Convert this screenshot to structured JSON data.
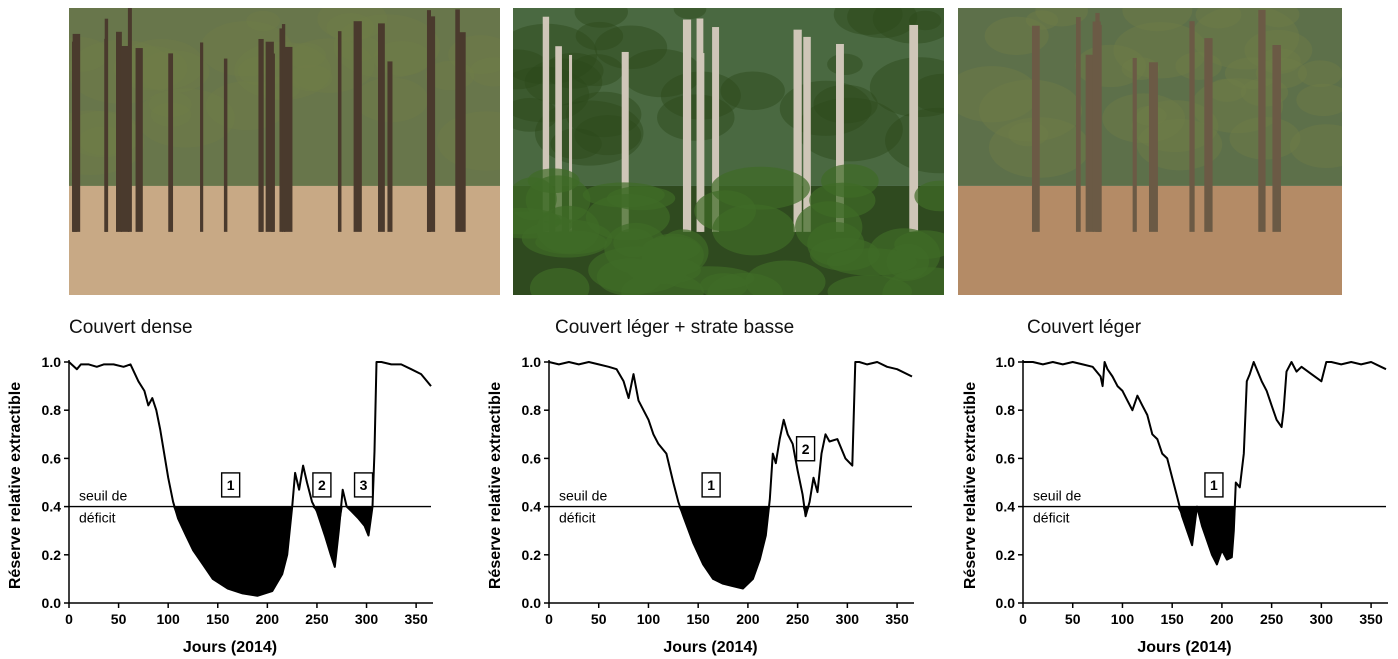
{
  "photos": [
    {
      "panel": "Couvert dense",
      "palette": {
        "sky": "#9fb4a0",
        "canopy": "#5e6b3c",
        "ground": "#c8a985",
        "trunk": "#4a3a2d"
      }
    },
    {
      "panel": "Couvert léger + strate basse",
      "palette": {
        "sky": "#8fb8de",
        "canopy": "#3e5a26",
        "ground": "#2f4a1f",
        "trunk": "#cfc6b8"
      }
    },
    {
      "panel": "Couvert léger",
      "palette": {
        "sky": "#b6d0ea",
        "canopy": "#4d5f2e",
        "ground": "#b48b66",
        "trunk": "#6b5a45"
      }
    }
  ],
  "chart_data": [
    {
      "type": "line",
      "title": "Couvert dense",
      "xlabel": "Jours (2014)",
      "ylabel": "Réserve relative extractible",
      "xlim": [
        0,
        365
      ],
      "ylim": [
        0,
        1.0
      ],
      "x_ticks": [
        "0",
        "50",
        "100",
        "150",
        "200",
        "250",
        "300",
        "350"
      ],
      "y_ticks": [
        "0.0",
        "0.2",
        "0.4",
        "0.6",
        "0.8",
        "1.0"
      ],
      "threshold": {
        "value": 0.4,
        "label_line1": "seuil de",
        "label_line2": "déficit"
      },
      "annotations": [
        {
          "label": "1",
          "x": 163,
          "y": 0.49
        },
        {
          "label": "2",
          "x": 255,
          "y": 0.49
        },
        {
          "label": "3",
          "x": 297,
          "y": 0.49
        }
      ],
      "series": [
        {
          "x": [
            0,
            8,
            12,
            20,
            28,
            35,
            45,
            55,
            62,
            70,
            76,
            80,
            84,
            88,
            92,
            96,
            100,
            105,
            110,
            118,
            125,
            135,
            145,
            160,
            175,
            190,
            205,
            215,
            220,
            225,
            228,
            232,
            236,
            240,
            245,
            250,
            258,
            264,
            268,
            272,
            276,
            280,
            285,
            292,
            298,
            302,
            306,
            308,
            310,
            315,
            325,
            335,
            345,
            355,
            365
          ],
          "y": [
            1.0,
            0.97,
            0.99,
            0.99,
            0.98,
            0.99,
            0.99,
            0.98,
            0.99,
            0.92,
            0.88,
            0.82,
            0.85,
            0.8,
            0.72,
            0.62,
            0.52,
            0.42,
            0.35,
            0.28,
            0.22,
            0.16,
            0.1,
            0.06,
            0.04,
            0.03,
            0.05,
            0.12,
            0.2,
            0.4,
            0.54,
            0.47,
            0.57,
            0.5,
            0.42,
            0.38,
            0.28,
            0.2,
            0.15,
            0.3,
            0.47,
            0.4,
            0.38,
            0.35,
            0.32,
            0.28,
            0.4,
            0.63,
            1.0,
            1.0,
            0.99,
            0.99,
            0.97,
            0.95,
            0.9
          ]
        }
      ]
    },
    {
      "type": "line",
      "title": "Couvert léger + strate basse",
      "xlabel": "Jours (2014)",
      "ylabel": "Réserve relative extractible",
      "xlim": [
        0,
        365
      ],
      "ylim": [
        0,
        1.0
      ],
      "x_ticks": [
        "0",
        "50",
        "100",
        "150",
        "200",
        "250",
        "300",
        "350"
      ],
      "y_ticks": [
        "0.0",
        "0.2",
        "0.4",
        "0.6",
        "0.8",
        "1.0"
      ],
      "threshold": {
        "value": 0.4,
        "label_line1": "seuil de",
        "label_line2": "déficit"
      },
      "annotations": [
        {
          "label": "1",
          "x": 163,
          "y": 0.49
        },
        {
          "label": "2",
          "x": 258,
          "y": 0.64
        }
      ],
      "series": [
        {
          "x": [
            0,
            10,
            20,
            30,
            40,
            50,
            60,
            68,
            75,
            80,
            85,
            90,
            95,
            100,
            105,
            110,
            118,
            125,
            130,
            135,
            145,
            155,
            165,
            175,
            185,
            195,
            205,
            212,
            218,
            222,
            225,
            228,
            232,
            236,
            240,
            245,
            250,
            255,
            258,
            262,
            266,
            270,
            274,
            278,
            282,
            290,
            298,
            305,
            308,
            312,
            320,
            330,
            340,
            350,
            365
          ],
          "y": [
            1.0,
            0.99,
            1.0,
            0.99,
            1.0,
            0.99,
            0.98,
            0.97,
            0.92,
            0.85,
            0.95,
            0.84,
            0.8,
            0.76,
            0.7,
            0.66,
            0.62,
            0.5,
            0.42,
            0.36,
            0.25,
            0.16,
            0.1,
            0.08,
            0.07,
            0.06,
            0.1,
            0.18,
            0.28,
            0.43,
            0.62,
            0.58,
            0.68,
            0.76,
            0.7,
            0.66,
            0.55,
            0.45,
            0.36,
            0.42,
            0.52,
            0.46,
            0.62,
            0.7,
            0.67,
            0.68,
            0.6,
            0.57,
            1.0,
            1.0,
            0.99,
            1.0,
            0.98,
            0.97,
            0.94
          ]
        }
      ]
    },
    {
      "type": "line",
      "title": "Couvert léger",
      "xlabel": "Jours (2014)",
      "ylabel": "Réserve relative extractible",
      "xlim": [
        0,
        365
      ],
      "ylim": [
        0,
        1.0
      ],
      "x_ticks": [
        "0",
        "50",
        "100",
        "150",
        "200",
        "250",
        "300",
        "350"
      ],
      "y_ticks": [
        "0.0",
        "0.2",
        "0.4",
        "0.6",
        "0.8",
        "1.0"
      ],
      "threshold": {
        "value": 0.4,
        "label_line1": "seuil de",
        "label_line2": "déficit"
      },
      "annotations": [
        {
          "label": "1",
          "x": 192,
          "y": 0.49
        }
      ],
      "series": [
        {
          "x": [
            0,
            10,
            20,
            30,
            40,
            50,
            60,
            70,
            78,
            80,
            82,
            85,
            90,
            95,
            100,
            105,
            110,
            115,
            120,
            125,
            130,
            135,
            140,
            145,
            150,
            155,
            160,
            165,
            170,
            175,
            180,
            185,
            190,
            195,
            200,
            205,
            210,
            212,
            214,
            218,
            222,
            225,
            228,
            232,
            236,
            240,
            245,
            250,
            255,
            260,
            262,
            265,
            270,
            275,
            280,
            290,
            300,
            305,
            310,
            320,
            330,
            340,
            350,
            360,
            365
          ],
          "y": [
            1.0,
            1.0,
            0.99,
            1.0,
            0.99,
            1.0,
            0.99,
            0.98,
            0.94,
            0.9,
            1.0,
            0.97,
            0.94,
            0.9,
            0.88,
            0.84,
            0.8,
            0.86,
            0.82,
            0.78,
            0.7,
            0.68,
            0.62,
            0.6,
            0.52,
            0.44,
            0.36,
            0.3,
            0.24,
            0.4,
            0.32,
            0.26,
            0.2,
            0.16,
            0.22,
            0.18,
            0.19,
            0.3,
            0.5,
            0.48,
            0.62,
            0.92,
            0.95,
            1.0,
            0.96,
            0.92,
            0.88,
            0.82,
            0.76,
            0.73,
            0.8,
            0.96,
            1.0,
            0.96,
            0.98,
            0.95,
            0.92,
            1.0,
            1.0,
            0.99,
            1.0,
            0.99,
            1.0,
            0.98,
            0.97
          ]
        }
      ]
    }
  ]
}
